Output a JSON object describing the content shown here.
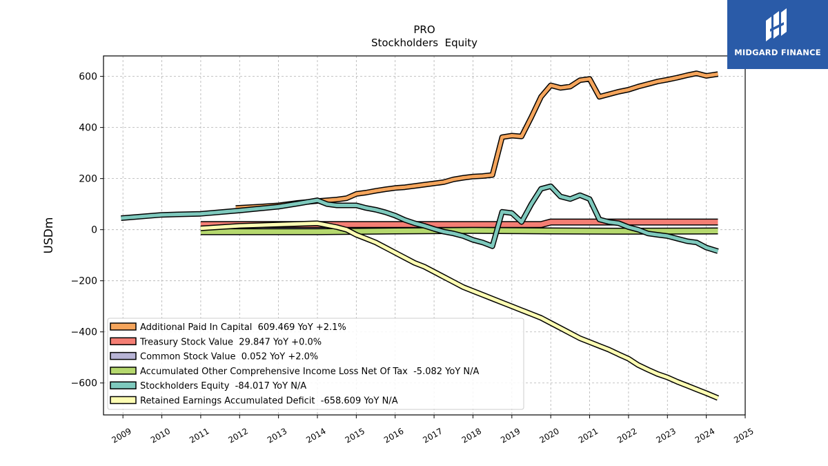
{
  "logo": {
    "text": "MIDGARD FINANCE"
  },
  "chart_data": {
    "type": "line",
    "title": "PRO",
    "subtitle": "Stockholders  Equity",
    "ylabel": "USDm",
    "xlabel": "",
    "xlim": [
      2008.5,
      2025.0
    ],
    "ylim": [
      -725,
      680
    ],
    "xticks": [
      "2009",
      "2010",
      "2011",
      "2012",
      "2013",
      "2014",
      "2015",
      "2016",
      "2017",
      "2018",
      "2019",
      "2020",
      "2021",
      "2022",
      "2023",
      "2024",
      "2025"
    ],
    "yticks": [
      "600",
      "400",
      "200",
      "0",
      "−200",
      "−400",
      "−600"
    ],
    "grid": true,
    "legend_position": "lower-left",
    "series": [
      {
        "name": "Additional Paid In Capital",
        "legend": "Additional Paid In Capital  609.469 YoY +2.1%",
        "color": "#f5a55c",
        "x": [
          2011.9,
          2012.5,
          2013.0,
          2013.5,
          2014.0,
          2014.5,
          2014.75,
          2015.0,
          2015.25,
          2015.5,
          2015.75,
          2016.0,
          2016.25,
          2016.5,
          2016.75,
          2017.0,
          2017.25,
          2017.5,
          2017.75,
          2018.0,
          2018.25,
          2018.5,
          2018.75,
          2019.0,
          2019.25,
          2019.5,
          2019.75,
          2020.0,
          2020.25,
          2020.5,
          2020.75,
          2021.0,
          2021.25,
          2021.5,
          2021.75,
          2022.0,
          2022.25,
          2022.5,
          2022.75,
          2023.0,
          2023.25,
          2023.5,
          2023.75,
          2024.0,
          2024.3
        ],
        "y": [
          85,
          90,
          95,
          105,
          112,
          118,
          123,
          140,
          145,
          152,
          158,
          163,
          166,
          171,
          176,
          181,
          186,
          197,
          203,
          208,
          210,
          214,
          362,
          368,
          365,
          440,
          520,
          565,
          555,
          560,
          585,
          590,
          520,
          530,
          540,
          548,
          560,
          570,
          580,
          587,
          595,
          604,
          612,
          602,
          609
        ]
      },
      {
        "name": "Treasury Stock Value",
        "legend": "Treasury Stock Value  29.847 YoY +0.0%",
        "color": "#f47e74",
        "x": [
          2011.0,
          2015.0,
          2019.75,
          2020.0,
          2024.3
        ],
        "y": [
          20,
          20,
          20,
          30,
          30
        ]
      },
      {
        "name": "Common Stock Value",
        "legend": "Common Stock Value  0.052 YoY +2.0%",
        "color": "#b8b4d6",
        "x": [
          2011.0,
          2024.3
        ],
        "y": [
          0,
          0
        ]
      },
      {
        "name": "Accumulated Other Comprehensive Income Loss Net Of Tax",
        "legend": "Accumulated Other Comprehensive Income Loss Net Of Tax  -5.082 YoY N/A",
        "color": "#b5d86e",
        "x": [
          2011.0,
          2014.0,
          2016.0,
          2018.0,
          2020.0,
          2022.0,
          2024.3
        ],
        "y": [
          -8,
          -8,
          -5,
          -3,
          -5,
          -6,
          -5
        ]
      },
      {
        "name": "Stockholders Equity",
        "legend": "Stockholders Equity  -84.017 YoY N/A",
        "color": "#7ec9bd",
        "x": [
          2008.95,
          2010.0,
          2011.0,
          2012.0,
          2013.0,
          2013.5,
          2014.0,
          2014.25,
          2014.5,
          2014.75,
          2015.0,
          2015.25,
          2015.5,
          2015.75,
          2016.0,
          2016.25,
          2016.5,
          2016.75,
          2017.0,
          2017.25,
          2017.5,
          2017.75,
          2018.0,
          2018.25,
          2018.5,
          2018.75,
          2019.0,
          2019.25,
          2019.5,
          2019.75,
          2020.0,
          2020.25,
          2020.5,
          2020.75,
          2021.0,
          2021.25,
          2021.5,
          2021.75,
          2022.0,
          2022.25,
          2022.5,
          2022.75,
          2023.0,
          2023.25,
          2023.5,
          2023.75,
          2024.0,
          2024.3
        ],
        "y": [
          45,
          58,
          62,
          75,
          90,
          102,
          115,
          100,
          95,
          95,
          95,
          85,
          78,
          68,
          55,
          38,
          25,
          15,
          3,
          -8,
          -15,
          -25,
          -40,
          -50,
          -65,
          70,
          65,
          30,
          100,
          160,
          170,
          130,
          120,
          135,
          120,
          40,
          30,
          25,
          10,
          0,
          -15,
          -20,
          -25,
          -35,
          -45,
          -50,
          -70,
          -84
        ]
      },
      {
        "name": "Retained Earnings Accumulated Deficit",
        "legend": "Retained Earnings Accumulated Deficit  -658.609 YoY N/A",
        "color": "#fdfdb3",
        "x": [
          2011.0,
          2012.0,
          2013.0,
          2014.0,
          2014.5,
          2014.75,
          2015.0,
          2015.25,
          2015.5,
          2015.75,
          2016.0,
          2016.25,
          2016.5,
          2016.75,
          2017.0,
          2017.25,
          2017.5,
          2017.75,
          2018.0,
          2018.25,
          2018.5,
          2018.75,
          2019.0,
          2019.25,
          2019.5,
          2019.75,
          2020.0,
          2020.25,
          2020.5,
          2020.75,
          2021.0,
          2021.25,
          2021.5,
          2021.75,
          2022.0,
          2022.25,
          2022.5,
          2022.75,
          2023.0,
          2023.25,
          2023.5,
          2023.75,
          2024.0,
          2024.3
        ],
        "y": [
          5,
          15,
          20,
          25,
          10,
          0,
          -20,
          -35,
          -50,
          -70,
          -90,
          -110,
          -130,
          -145,
          -165,
          -185,
          -205,
          -225,
          -240,
          -255,
          -270,
          -285,
          -300,
          -315,
          -330,
          -345,
          -365,
          -385,
          -405,
          -425,
          -440,
          -455,
          -470,
          -488,
          -505,
          -530,
          -548,
          -565,
          -578,
          -595,
          -610,
          -625,
          -640,
          -659
        ]
      }
    ]
  }
}
